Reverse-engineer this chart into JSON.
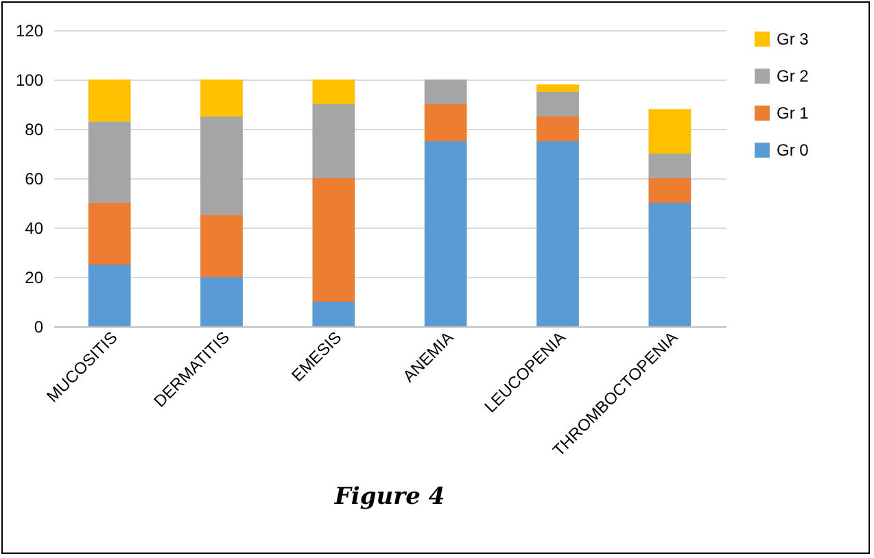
{
  "chart_data": {
    "type": "bar",
    "title": "Figure 4",
    "stacked": true,
    "categories": [
      "MUCOSITIS",
      "DERMATITIS",
      "EMESIS",
      "ANEMIA",
      "LEUCOPENIA",
      "THROMBOCTOPENIA"
    ],
    "series": [
      {
        "name": "Gr 0",
        "color": "#5b9bd5",
        "values": [
          25,
          20,
          10,
          75,
          75,
          50
        ]
      },
      {
        "name": "Gr 1",
        "color": "#ed7d31",
        "values": [
          25,
          25,
          50,
          15,
          10,
          10
        ]
      },
      {
        "name": "Gr 2",
        "color": "#a5a5a5",
        "values": [
          33,
          40,
          30,
          10,
          10,
          10
        ]
      },
      {
        "name": "Gr 3",
        "color": "#ffc000",
        "values": [
          17,
          15,
          10,
          0,
          3,
          18
        ]
      }
    ],
    "ylim": [
      0,
      120
    ],
    "yticks": [
      0,
      20,
      40,
      60,
      80,
      100,
      120
    ],
    "grid": true,
    "legend": "right"
  }
}
